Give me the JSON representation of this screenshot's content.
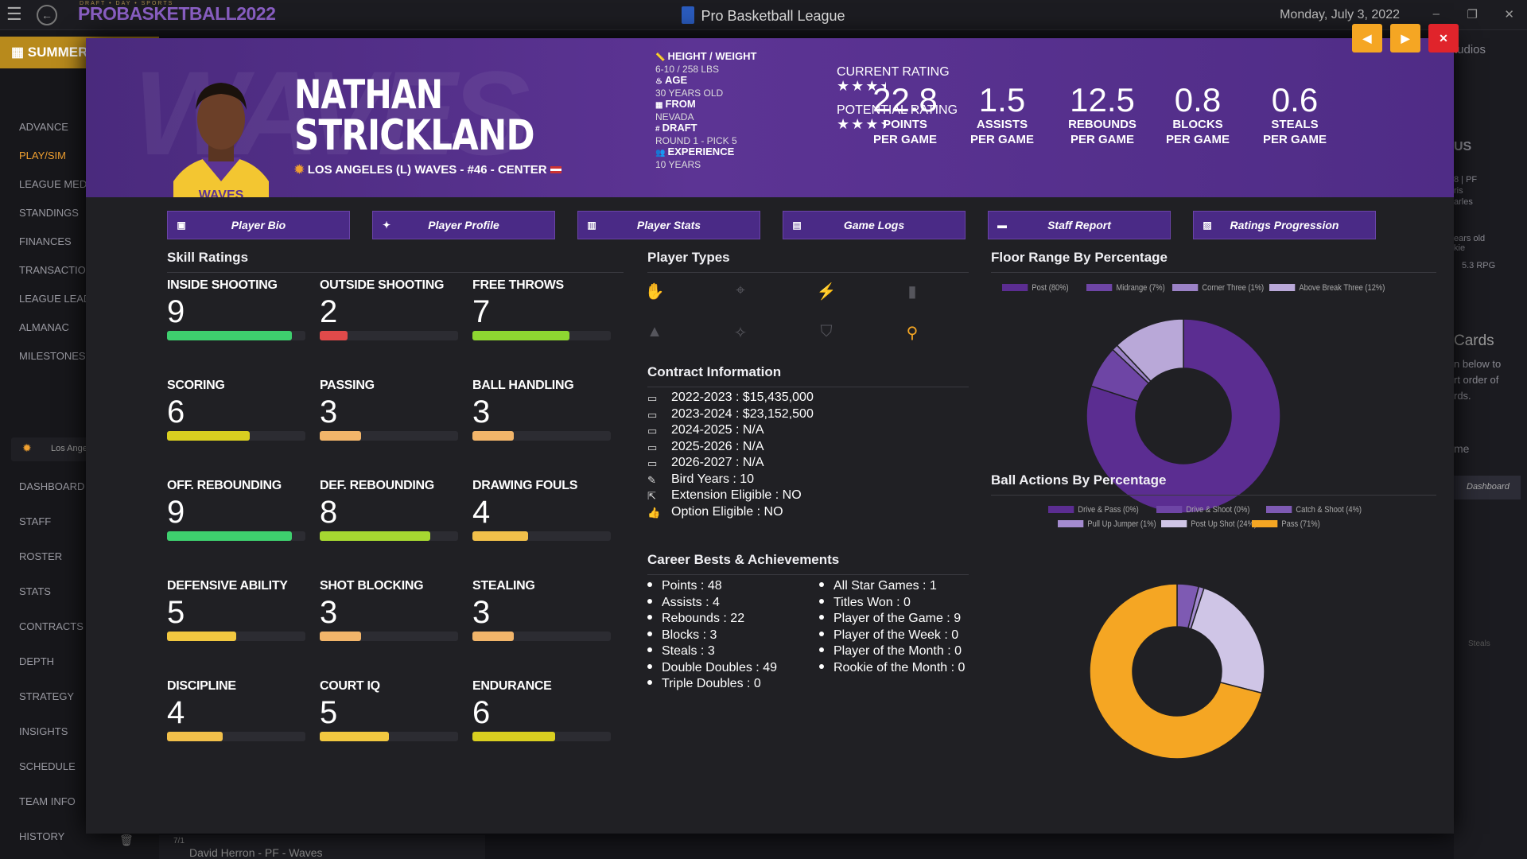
{
  "window": {
    "title": "Pro Basketball League",
    "date": "Monday, July 3, 2022",
    "logo": "PROBASKETBALL2022",
    "logo_tagline": "DRAFT • DAY • SPORTS"
  },
  "sidebar": {
    "season_button": "SUMMER",
    "items": [
      "ADVANCE",
      "PLAY/SIM",
      "LEAGUE MED",
      "STANDINGS",
      "FINANCES",
      "TRANSACTIO",
      "LEAGUE LEAD",
      "ALMANAC",
      "MILESTONES"
    ],
    "team_label": "Los Ange",
    "team_items": [
      "DASHBOARD",
      "STAFF",
      "ROSTER",
      "STATS",
      "CONTRACTS",
      "DEPTH",
      "STRATEGY",
      "INSIGHTS",
      "SCHEDULE",
      "TEAM INFO",
      "HISTORY"
    ],
    "bottom_date": "7/1",
    "bottom_text": "David Herron - PF - Waves"
  },
  "right_panel": {
    "studios": "tudios",
    "us": "US",
    "card_text": [
      "8 | PF",
      "ris",
      "arles",
      "ears old",
      "kie",
      "5.3 RPG"
    ],
    "cards": "Cards",
    "cards_desc": [
      "n below to",
      "rt order of",
      "rds."
    ],
    "me": "me",
    "dashboard": "Dashboard",
    "steals": "Steals"
  },
  "player": {
    "first_name": "NATHAN",
    "last_name": "STRICKLAND",
    "team_line": "LOS ANGELES (L) WAVES - #46 - CENTER",
    "watermark": "WAVES",
    "bio": [
      {
        "label": "HEIGHT / WEIGHT",
        "value": "6-10 / 258 LBS",
        "icon": "ruler-icon"
      },
      {
        "label": "AGE",
        "value": "30 YEARS OLD",
        "icon": "cake-icon"
      },
      {
        "label": "FROM",
        "value": "NEVADA",
        "icon": "city-icon"
      },
      {
        "label": "DRAFT",
        "value": "ROUND 1 - PICK 5",
        "icon": "hash-icon"
      },
      {
        "label": "EXPERIENCE",
        "value": "10 YEARS",
        "icon": "users-icon"
      }
    ],
    "current_rating_label": "CURRENT RATING",
    "current_rating_stars": 3.5,
    "potential_rating_label": "POTENTIAL RATING",
    "potential_rating_stars": 3.5,
    "stats": [
      {
        "value": "22.8",
        "label1": "POINTS",
        "label2": "PER GAME"
      },
      {
        "value": "1.5",
        "label1": "ASSISTS",
        "label2": "PER GAME"
      },
      {
        "value": "12.5",
        "label1": "REBOUNDS",
        "label2": "PER GAME"
      },
      {
        "value": "0.8",
        "label1": "BLOCKS",
        "label2": "PER GAME"
      },
      {
        "value": "0.6",
        "label1": "STEALS",
        "label2": "PER GAME"
      }
    ]
  },
  "colors": {
    "orange": "#f5a623",
    "close": "#e0242b",
    "purple": "#4a2a86"
  },
  "tabs": [
    "Player Bio",
    "Player Profile",
    "Player Stats",
    "Game Logs",
    "Staff Report",
    "Ratings Progression"
  ],
  "skills_title": "Skill Ratings",
  "skills": [
    {
      "name": "INSIDE SHOOTING",
      "value": 9,
      "color": "#3ecf6e"
    },
    {
      "name": "OUTSIDE SHOOTING",
      "value": 2,
      "color": "#e04a4a"
    },
    {
      "name": "FREE THROWS",
      "value": 7,
      "color": "#8ed631"
    },
    {
      "name": "SCORING",
      "value": 6,
      "color": "#d9cf20"
    },
    {
      "name": "PASSING",
      "value": 3,
      "color": "#f2b56a"
    },
    {
      "name": "BALL HANDLING",
      "value": 3,
      "color": "#f2b56a"
    },
    {
      "name": "OFF. REBOUNDING",
      "value": 9,
      "color": "#3ecf6e"
    },
    {
      "name": "DEF. REBOUNDING",
      "value": 8,
      "color": "#a6d831"
    },
    {
      "name": "DRAWING FOULS",
      "value": 4,
      "color": "#f2c04a"
    },
    {
      "name": "DEFENSIVE ABILITY",
      "value": 5,
      "color": "#f2c840"
    },
    {
      "name": "SHOT BLOCKING",
      "value": 3,
      "color": "#f2b56a"
    },
    {
      "name": "STEALING",
      "value": 3,
      "color": "#f2b56a"
    },
    {
      "name": "DISCIPLINE",
      "value": 4,
      "color": "#f2c04a"
    },
    {
      "name": "COURT IQ",
      "value": 5,
      "color": "#f2c840"
    },
    {
      "name": "ENDURANCE",
      "value": 6,
      "color": "#d9cf20"
    }
  ],
  "player_types_title": "Player Types",
  "player_types": [
    {
      "icon": "basketball-hand-icon",
      "active": false
    },
    {
      "icon": "crosshair-icon",
      "active": false
    },
    {
      "icon": "lightning-icon",
      "active": false
    },
    {
      "icon": "paint-roller-icon",
      "active": false
    },
    {
      "icon": "wizard-hat-icon",
      "active": false
    },
    {
      "icon": "magic-wand-icon",
      "active": false
    },
    {
      "icon": "shield-icon",
      "active": false
    },
    {
      "icon": "broom-icon",
      "active": true
    }
  ],
  "contract_title": "Contract Information",
  "contract": [
    {
      "label": "2022-2023",
      "value": "$15,435,000",
      "icon": "money-icon"
    },
    {
      "label": "2023-2024",
      "value": "$23,152,500",
      "icon": "money-icon"
    },
    {
      "label": "2024-2025",
      "value": "N/A",
      "icon": "money-icon"
    },
    {
      "label": "2025-2026",
      "value": "N/A",
      "icon": "money-icon"
    },
    {
      "label": "2026-2027",
      "value": "N/A",
      "icon": "money-icon"
    },
    {
      "label": "Bird Years",
      "value": "10",
      "icon": "feather-icon"
    },
    {
      "label": "Extension Eligible",
      "value": "NO",
      "icon": "external-link-icon"
    },
    {
      "label": "Option Eligible",
      "value": "NO",
      "icon": "thumbs-up-icon"
    }
  ],
  "bests_title": "Career Bests & Achievements",
  "bests_left": [
    {
      "label": "Points",
      "value": "48"
    },
    {
      "label": "Assists",
      "value": "4"
    },
    {
      "label": "Rebounds",
      "value": "22"
    },
    {
      "label": "Blocks",
      "value": "3"
    },
    {
      "label": "Steals",
      "value": "3"
    },
    {
      "label": "Double Doubles",
      "value": "49"
    },
    {
      "label": "Triple Doubles",
      "value": "0"
    }
  ],
  "bests_right": [
    {
      "label": "All Star Games",
      "value": "1"
    },
    {
      "label": "Titles Won",
      "value": "0"
    },
    {
      "label": "Player of the Game",
      "value": "9"
    },
    {
      "label": "Player of the Week",
      "value": "0"
    },
    {
      "label": "Player of the Month",
      "value": "0"
    },
    {
      "label": "Rookie of the Month",
      "value": "0"
    }
  ],
  "chart_data": [
    {
      "type": "pie",
      "title": "Floor Range By Percentage",
      "legend_position": "top",
      "categories": [
        "Post (80%)",
        "Midrange (7%)",
        "Corner Three (1%)",
        "Above Break Three (12%)"
      ],
      "values": [
        80,
        7,
        1,
        12
      ],
      "colors": [
        "#5b2d91",
        "#6e45a5",
        "#9b82c6",
        "#b9a8d8"
      ]
    },
    {
      "type": "pie",
      "title": "Ball Actions By Percentage",
      "legend_position": "top",
      "categories": [
        "Drive & Pass (0%)",
        "Drive & Shoot (0%)",
        "Catch & Shoot (4%)",
        "Pull Up Jumper (1%)",
        "Post Up Shot (24%)",
        "Pass (71%)"
      ],
      "values": [
        0,
        0,
        4,
        1,
        24,
        71
      ],
      "colors": [
        "#5b2d91",
        "#6e45a5",
        "#7e5ab3",
        "#a48bd0",
        "#cfc5e6",
        "#f5a623"
      ]
    }
  ]
}
